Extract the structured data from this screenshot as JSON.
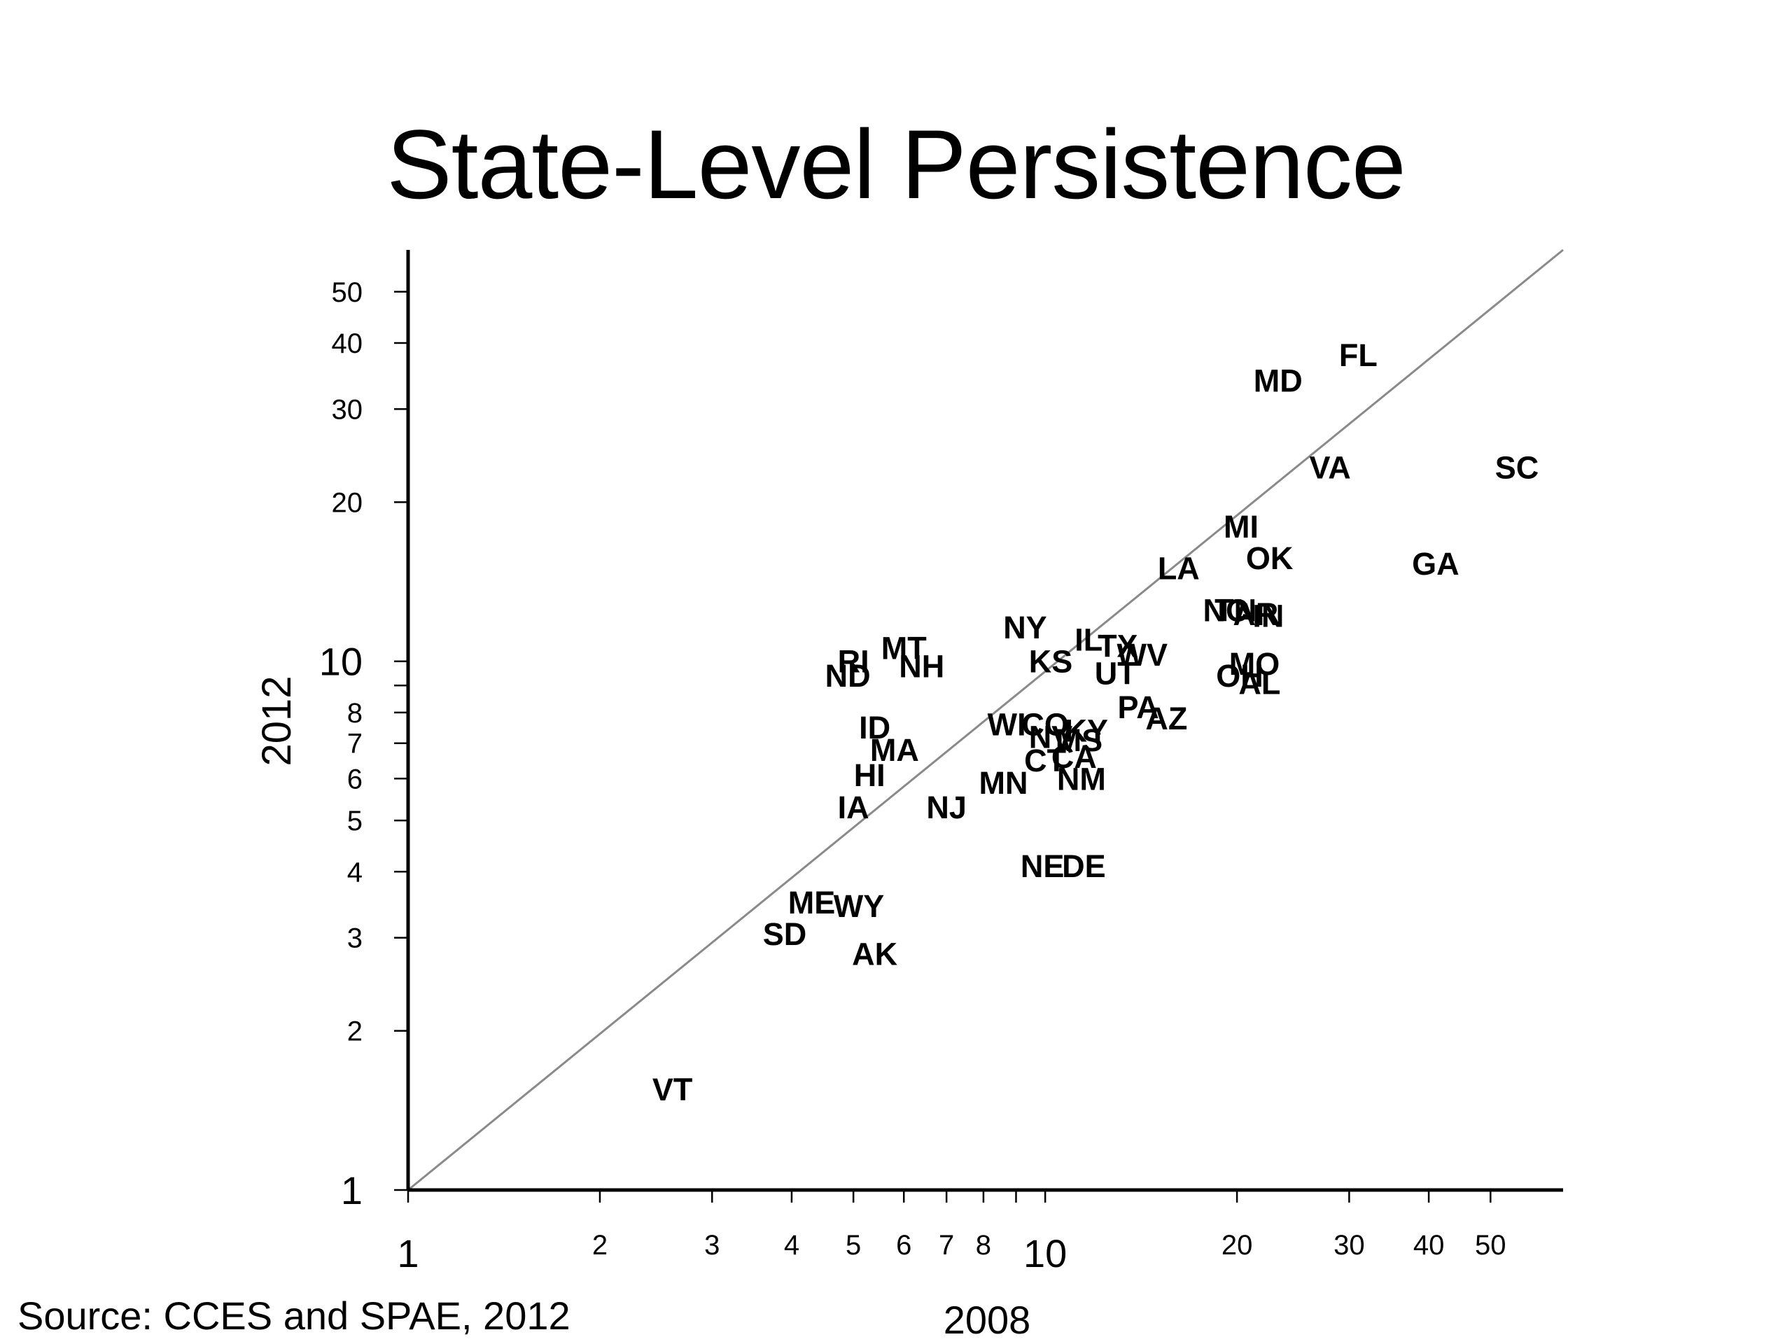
{
  "title": "State-Level Persistence",
  "source": "Source:  CCES and SPAE, 2012",
  "chart_data": {
    "type": "scatter",
    "title": "State-Level Persistence",
    "xlabel": "2008",
    "ylabel": "2012",
    "xscale": "log",
    "yscale": "log",
    "xlim": [
      1,
      65
    ],
    "ylim": [
      1,
      60
    ],
    "xticks": [
      {
        "value": 1,
        "label": "1",
        "major": true
      },
      {
        "value": 2,
        "label": "2"
      },
      {
        "value": 3,
        "label": "3"
      },
      {
        "value": 4,
        "label": "4"
      },
      {
        "value": 5,
        "label": "5"
      },
      {
        "value": 6,
        "label": "6"
      },
      {
        "value": 7,
        "label": "7"
      },
      {
        "value": 8,
        "label": "8"
      },
      {
        "value": 10,
        "label": "10",
        "major": true
      },
      {
        "value": 20,
        "label": "20"
      },
      {
        "value": 30,
        "label": "30"
      },
      {
        "value": 40,
        "label": "40"
      },
      {
        "value": 50,
        "label": "50"
      }
    ],
    "xminor": [
      9
    ],
    "yticks": [
      {
        "value": 1,
        "label": "1",
        "major": true
      },
      {
        "value": 2,
        "label": "2"
      },
      {
        "value": 3,
        "label": "3"
      },
      {
        "value": 4,
        "label": "4"
      },
      {
        "value": 5,
        "label": "5"
      },
      {
        "value": 6,
        "label": "6"
      },
      {
        "value": 7,
        "label": "7"
      },
      {
        "value": 8,
        "label": "8"
      },
      {
        "value": 10,
        "label": "10",
        "major": true
      },
      {
        "value": 20,
        "label": "20"
      },
      {
        "value": 30,
        "label": "30"
      },
      {
        "value": 40,
        "label": "40"
      },
      {
        "value": 50,
        "label": "50"
      }
    ],
    "yminor": [
      9
    ],
    "reference_line": {
      "from": [
        1,
        1
      ],
      "to": [
        65,
        60
      ],
      "label": "45-degree line",
      "color": "#8a8a8a"
    },
    "points": [
      {
        "label": "FL",
        "x": 31.0,
        "y": 38.0
      },
      {
        "label": "MD",
        "x": 23.2,
        "y": 34.0
      },
      {
        "label": "VA",
        "x": 28.0,
        "y": 23.3
      },
      {
        "label": "SC",
        "x": 55.0,
        "y": 23.3
      },
      {
        "label": "MI",
        "x": 20.3,
        "y": 18.0
      },
      {
        "label": "OK",
        "x": 22.5,
        "y": 15.7
      },
      {
        "label": "GA",
        "x": 41.0,
        "y": 15.3
      },
      {
        "label": "LA",
        "x": 16.2,
        "y": 15.0
      },
      {
        "label": "NC",
        "x": 19.2,
        "y": 12.5
      },
      {
        "label": "TN",
        "x": 19.9,
        "y": 12.5
      },
      {
        "label": "AR",
        "x": 21.4,
        "y": 12.3
      },
      {
        "label": "IN",
        "x": 22.4,
        "y": 12.2
      },
      {
        "label": "NY",
        "x": 9.3,
        "y": 11.6
      },
      {
        "label": "IL",
        "x": 11.7,
        "y": 11.0
      },
      {
        "label": "TX",
        "x": 13.0,
        "y": 10.7
      },
      {
        "label": "WV",
        "x": 14.2,
        "y": 10.3
      },
      {
        "label": "MT",
        "x": 6.0,
        "y": 10.6
      },
      {
        "label": "RI",
        "x": 5.0,
        "y": 10.0
      },
      {
        "label": "NH",
        "x": 6.4,
        "y": 9.8
      },
      {
        "label": "KS",
        "x": 10.2,
        "y": 10.0
      },
      {
        "label": "MO",
        "x": 21.3,
        "y": 9.9
      },
      {
        "label": "ND",
        "x": 4.9,
        "y": 9.4
      },
      {
        "label": "UT",
        "x": 12.9,
        "y": 9.5
      },
      {
        "label": "OH",
        "x": 20.2,
        "y": 9.4
      },
      {
        "label": "AL",
        "x": 21.7,
        "y": 9.1
      },
      {
        "label": "PA",
        "x": 14.0,
        "y": 8.2
      },
      {
        "label": "AZ",
        "x": 15.5,
        "y": 7.8
      },
      {
        "label": "ID",
        "x": 5.4,
        "y": 7.5
      },
      {
        "label": "WI",
        "x": 8.7,
        "y": 7.6
      },
      {
        "label": "CO",
        "x": 10.0,
        "y": 7.6
      },
      {
        "label": "KY",
        "x": 11.6,
        "y": 7.4
      },
      {
        "label": "NV",
        "x": 10.2,
        "y": 7.2
      },
      {
        "label": "MS",
        "x": 11.3,
        "y": 7.1
      },
      {
        "label": "MA",
        "x": 5.8,
        "y": 6.8
      },
      {
        "label": "CT",
        "x": 10.0,
        "y": 6.5
      },
      {
        "label": "CA",
        "x": 11.1,
        "y": 6.6
      },
      {
        "label": "HI",
        "x": 5.3,
        "y": 6.1
      },
      {
        "label": "NM",
        "x": 11.4,
        "y": 6.0
      },
      {
        "label": "MN",
        "x": 8.6,
        "y": 5.9
      },
      {
        "label": "IA",
        "x": 5.0,
        "y": 5.3
      },
      {
        "label": "NJ",
        "x": 7.0,
        "y": 5.3
      },
      {
        "label": "NE",
        "x": 9.9,
        "y": 4.1
      },
      {
        "label": "DE",
        "x": 11.5,
        "y": 4.1
      },
      {
        "label": "ME",
        "x": 4.3,
        "y": 3.5
      },
      {
        "label": "WY",
        "x": 5.1,
        "y": 3.45
      },
      {
        "label": "SD",
        "x": 3.9,
        "y": 3.05
      },
      {
        "label": "AK",
        "x": 5.4,
        "y": 2.8
      },
      {
        "label": "VT",
        "x": 2.6,
        "y": 1.55
      }
    ]
  }
}
